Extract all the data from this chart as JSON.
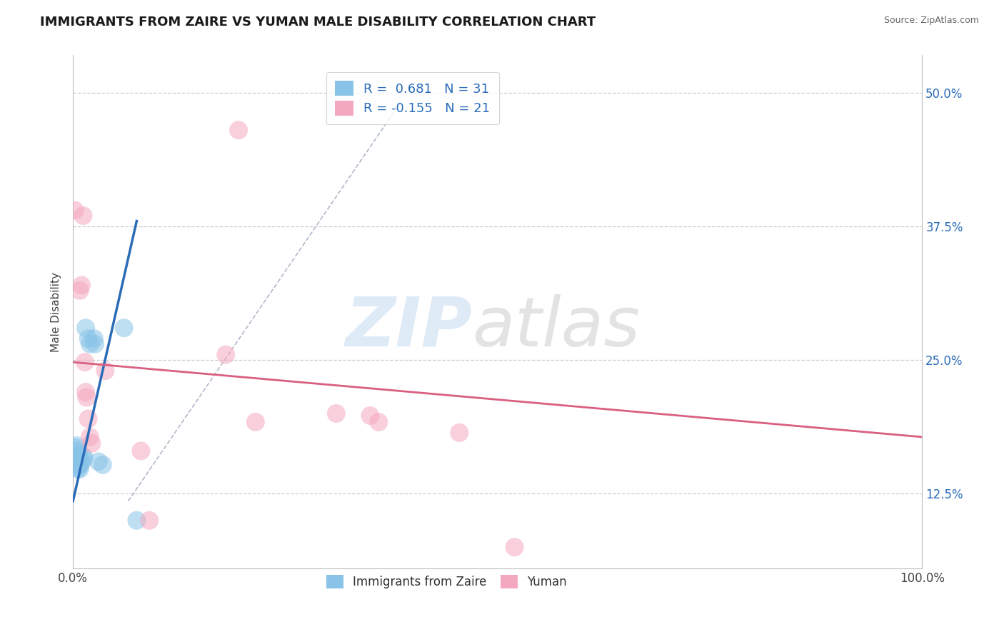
{
  "title": "IMMIGRANTS FROM ZAIRE VS YUMAN MALE DISABILITY CORRELATION CHART",
  "source": "Source: ZipAtlas.com",
  "ylabel": "Male Disability",
  "xlim": [
    0.0,
    1.0
  ],
  "ylim": [
    0.055,
    0.535
  ],
  "xtick_positions": [
    0.0,
    1.0
  ],
  "xtick_labels": [
    "0.0%",
    "100.0%"
  ],
  "ytick_positions": [
    0.125,
    0.25,
    0.375,
    0.5
  ],
  "ytick_labels": [
    "12.5%",
    "25.0%",
    "37.5%",
    "50.0%"
  ],
  "background_color": "#ffffff",
  "grid_color": "#cccccc",
  "blue_color": "#89c4e8",
  "pink_color": "#f4a8bf",
  "blue_line_color": "#2b6cb8",
  "pink_line_color": "#d95f80",
  "legend_r1": "R =  0.681",
  "legend_n1": "N = 31",
  "legend_r2": "R = -0.155",
  "legend_n2": "N = 21",
  "scatter_blue": [
    [
      0.002,
      0.155
    ],
    [
      0.003,
      0.158
    ],
    [
      0.003,
      0.168
    ],
    [
      0.004,
      0.165
    ],
    [
      0.004,
      0.17
    ],
    [
      0.004,
      0.155
    ],
    [
      0.005,
      0.16
    ],
    [
      0.005,
      0.15
    ],
    [
      0.005,
      0.148
    ],
    [
      0.006,
      0.162
    ],
    [
      0.006,
      0.155
    ],
    [
      0.006,
      0.158
    ],
    [
      0.007,
      0.155
    ],
    [
      0.007,
      0.152
    ],
    [
      0.007,
      0.16
    ],
    [
      0.008,
      0.155
    ],
    [
      0.008,
      0.155
    ],
    [
      0.008,
      0.148
    ],
    [
      0.009,
      0.152
    ],
    [
      0.01,
      0.155
    ],
    [
      0.012,
      0.16
    ],
    [
      0.013,
      0.158
    ],
    [
      0.015,
      0.28
    ],
    [
      0.018,
      0.27
    ],
    [
      0.02,
      0.265
    ],
    [
      0.025,
      0.27
    ],
    [
      0.026,
      0.265
    ],
    [
      0.03,
      0.155
    ],
    [
      0.035,
      0.152
    ],
    [
      0.06,
      0.28
    ],
    [
      0.075,
      0.1
    ]
  ],
  "scatter_pink": [
    [
      0.002,
      0.39
    ],
    [
      0.008,
      0.315
    ],
    [
      0.01,
      0.32
    ],
    [
      0.012,
      0.385
    ],
    [
      0.014,
      0.248
    ],
    [
      0.015,
      0.22
    ],
    [
      0.016,
      0.215
    ],
    [
      0.018,
      0.195
    ],
    [
      0.02,
      0.178
    ],
    [
      0.022,
      0.172
    ],
    [
      0.038,
      0.24
    ],
    [
      0.08,
      0.165
    ],
    [
      0.09,
      0.1
    ],
    [
      0.18,
      0.255
    ],
    [
      0.195,
      0.465
    ],
    [
      0.215,
      0.192
    ],
    [
      0.31,
      0.2
    ],
    [
      0.35,
      0.198
    ],
    [
      0.36,
      0.192
    ],
    [
      0.455,
      0.182
    ],
    [
      0.52,
      0.075
    ]
  ],
  "blue_trendline_x": [
    0.0,
    0.075
  ],
  "blue_trendline_y": [
    0.118,
    0.38
  ],
  "pink_trendline_x": [
    0.0,
    1.0
  ],
  "pink_trendline_y": [
    0.248,
    0.178
  ],
  "ref_line_x": [
    0.065,
    0.385
  ],
  "ref_line_y": [
    0.118,
    0.49
  ]
}
